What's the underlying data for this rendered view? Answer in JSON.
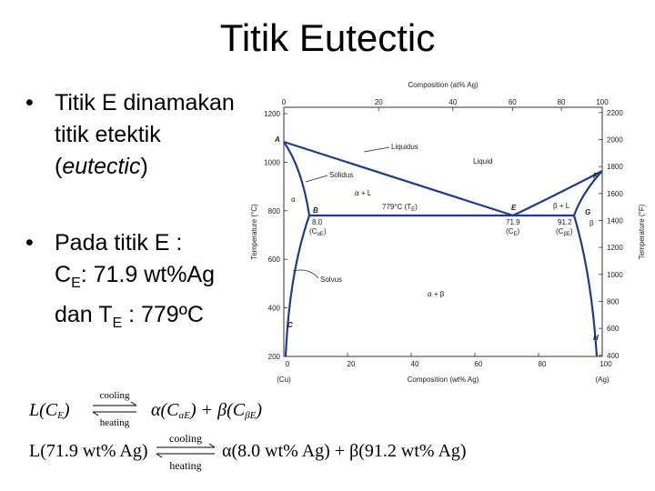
{
  "slide": {
    "title": "Titik Eutectic",
    "bullets": [
      [
        [
          "Titik E dinamakan"
        ],
        [
          "titik etektik"
        ],
        [
          "(",
          "eutectic",
          ")"
        ]
      ],
      [
        [
          "Pada titik E :"
        ],
        [
          "C",
          "E",
          ": 71.9 wt%Ag"
        ],
        [
          "dan T",
          "E",
          " : 779ºC"
        ]
      ]
    ]
  },
  "diagram": {
    "top_axis_title": "Composition (at% Ag)",
    "top_ticks": [
      0,
      20,
      40,
      60,
      80,
      100
    ],
    "bottom_axis_title": "Composition (wt% Ag)",
    "bottom_ticks": [
      0,
      20,
      40,
      60,
      80,
      100
    ],
    "left_axis_title": "Temperature (°C)",
    "left_ticks": [
      200,
      400,
      600,
      800,
      1000,
      1200
    ],
    "right_axis_title": "Temperature (°F)",
    "right_ticks": [
      400,
      600,
      800,
      1000,
      1200,
      1400,
      1600,
      1800,
      2000,
      2200
    ],
    "end_labels": [
      "(Cu)",
      "(Ag)"
    ],
    "curve_labels": [
      "Liquidus",
      "Solidus",
      "Solvus"
    ],
    "region_labels": [
      "Liquid",
      "α + L",
      "β + L",
      "α",
      "β",
      "α + β"
    ],
    "points": [
      "A",
      "B",
      "C",
      "E",
      "F",
      "G",
      "H"
    ],
    "eutectic_label": "779°C (T",
    "eutectic_label_sub": "E",
    "eutectic_label_end": ")",
    "compositions": [
      {
        "value": "8.0",
        "name": "(C",
        "sub": "αE",
        "end": ")"
      },
      {
        "value": "71.9",
        "name": "(C",
        "sub": "E",
        "end": ")"
      },
      {
        "value": "91.2",
        "name": "(C",
        "sub": "βE",
        "end": ")"
      }
    ]
  },
  "equations": [
    [
      "L(C",
      "E",
      ")",
      "cooling",
      "heating",
      "α(C",
      "αE",
      ") + β(C",
      "βE",
      ")"
    ],
    [
      "L(71.9 wt% Ag)",
      "cooling",
      "heating",
      "α(8.0 wt% Ag) + β(91.2 wt% Ag)"
    ]
  ]
}
